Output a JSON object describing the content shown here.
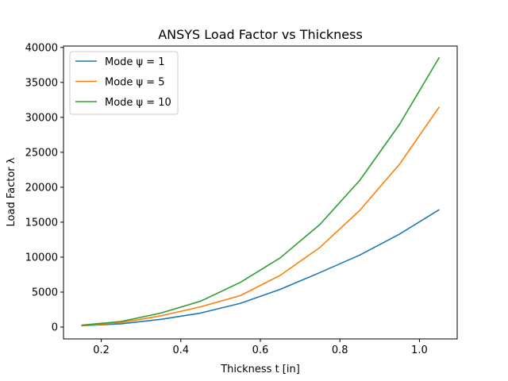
{
  "chart_data": {
    "type": "line",
    "title": "ANSYS Load Factor vs Thickness",
    "xlabel": "Thickness t [in]",
    "ylabel": "Load Factor λ",
    "xlim": [
      0.105,
      1.095
    ],
    "ylim": [
      -1700,
      40200
    ],
    "xticks": [
      0.2,
      0.4,
      0.6,
      0.8,
      1.0
    ],
    "xtick_labels": [
      "0.2",
      "0.4",
      "0.6",
      "0.8",
      "1.0"
    ],
    "yticks": [
      0,
      5000,
      10000,
      15000,
      20000,
      25000,
      30000,
      35000,
      40000
    ],
    "ytick_labels": [
      "0",
      "5000",
      "10000",
      "15000",
      "20000",
      "25000",
      "30000",
      "35000",
      "40000"
    ],
    "grid": false,
    "legend_position": "upper-left",
    "x": [
      0.15,
      0.25,
      0.35,
      0.45,
      0.55,
      0.65,
      0.75,
      0.85,
      0.95,
      1.05
    ],
    "series": [
      {
        "name": "Mode ψ = 1",
        "color": "#1f77b4",
        "values": [
          180,
          470,
          1100,
          2000,
          3400,
          5400,
          7800,
          10300,
          13300,
          16800
        ]
      },
      {
        "name": "Mode ψ = 5",
        "color": "#ff7f0e",
        "values": [
          200,
          650,
          1600,
          2900,
          4500,
          7400,
          11400,
          16700,
          23300,
          31500
        ]
      },
      {
        "name": "Mode ψ = 10",
        "color": "#2ca02c",
        "values": [
          260,
          800,
          2000,
          3700,
          6400,
          9900,
          14700,
          21000,
          29000,
          38600
        ]
      }
    ]
  }
}
